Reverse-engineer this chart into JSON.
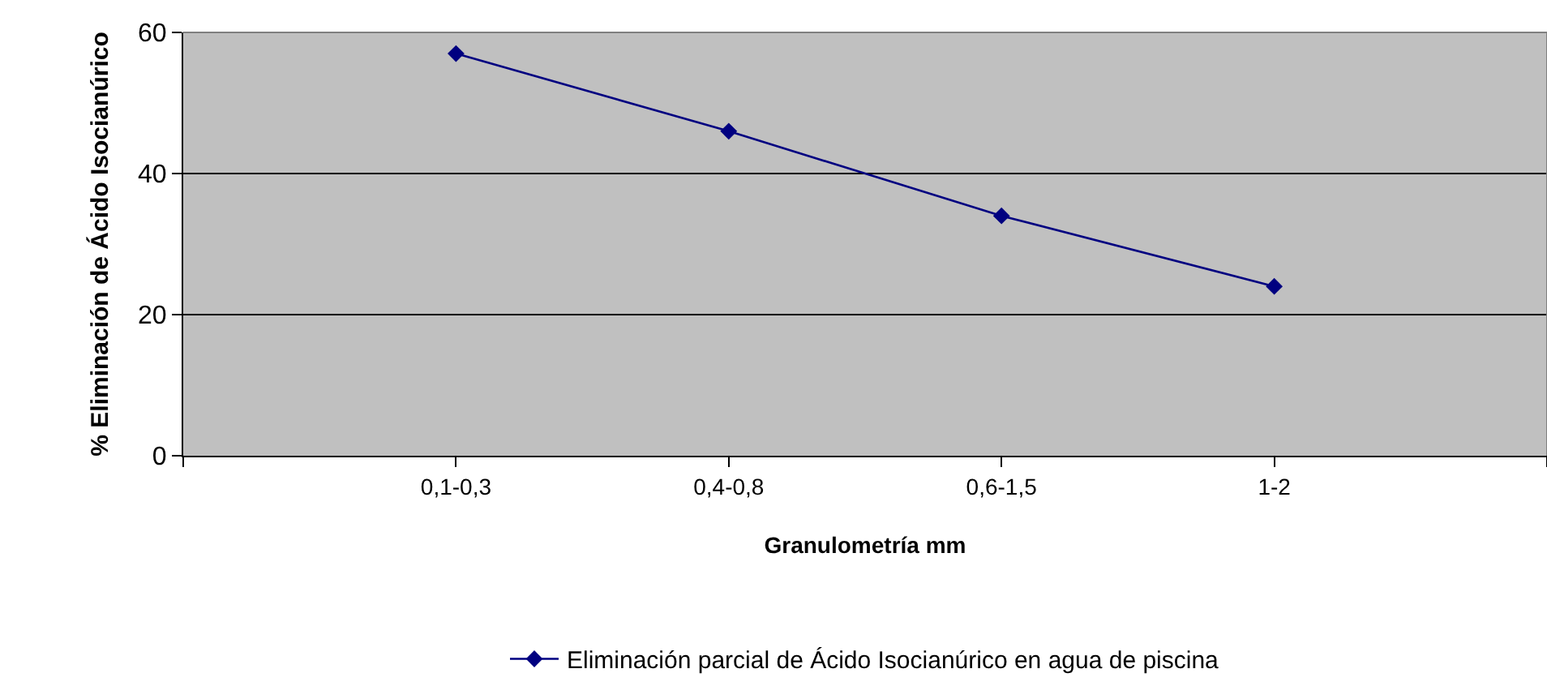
{
  "chart_data": {
    "type": "line",
    "xlabel": "Granulometría mm",
    "ylabel": "% Eliminación de Ácido Isocianúrico",
    "categories": [
      "0,1-0,3",
      "0,4-0,8",
      "0,6-1,5",
      "1-2"
    ],
    "series": [
      {
        "name": "Eliminación parcial de Ácido Isocianúrico en agua de piscina",
        "color": "#000080",
        "values": [
          57,
          46,
          34,
          24
        ]
      }
    ],
    "ylim": [
      0,
      60
    ],
    "yticks": [
      0,
      20,
      40,
      60
    ],
    "grid": "y",
    "legend": "bottom",
    "marker": "diamond",
    "line_style": "solid"
  }
}
